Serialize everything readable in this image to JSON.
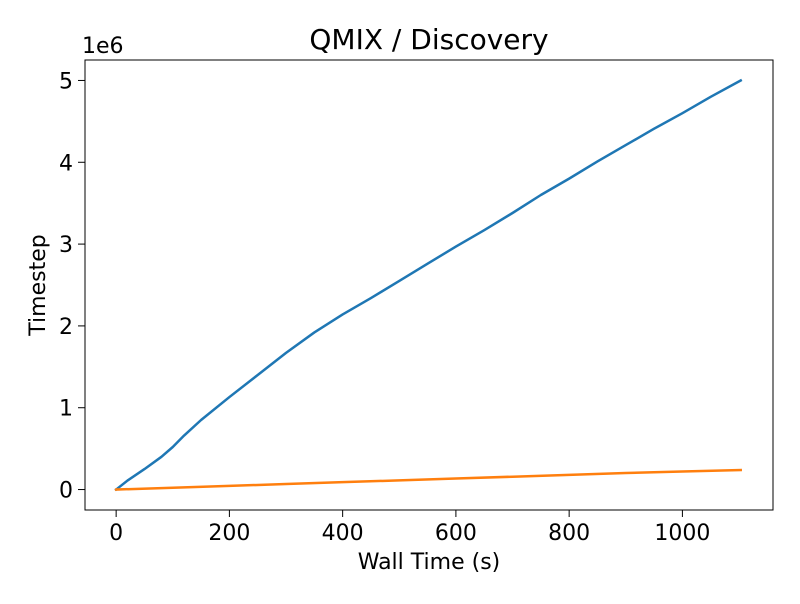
{
  "chart_data": {
    "type": "line",
    "title": "QMIX / Discovery",
    "xlabel": "Wall Time (s)",
    "ylabel": "Timestep",
    "y_offset_label": "1e6",
    "xlim": [
      -55,
      1160
    ],
    "ylim": [
      -250000,
      5250000
    ],
    "x_ticks": [
      0,
      200,
      400,
      600,
      800,
      1000
    ],
    "x_tick_labels": [
      "0",
      "200",
      "400",
      "600",
      "800",
      "1000"
    ],
    "y_ticks": [
      0,
      1000000,
      2000000,
      3000000,
      4000000,
      5000000
    ],
    "y_tick_labels": [
      "0",
      "1",
      "2",
      "3",
      "4",
      "5"
    ],
    "grid": false,
    "series": [
      {
        "color": "#1f77b4",
        "x": [
          0,
          20,
          50,
          80,
          100,
          120,
          150,
          200,
          250,
          300,
          350,
          400,
          450,
          500,
          550,
          600,
          650,
          700,
          750,
          800,
          850,
          900,
          950,
          1000,
          1050,
          1103
        ],
        "y": [
          0,
          110000,
          250000,
          400000,
          520000,
          660000,
          850000,
          1130000,
          1400000,
          1670000,
          1920000,
          2140000,
          2340000,
          2550000,
          2760000,
          2970000,
          3170000,
          3380000,
          3600000,
          3800000,
          4010000,
          4210000,
          4410000,
          4600000,
          4800000,
          5000000
        ]
      },
      {
        "color": "#ff7f0e",
        "x": [
          0,
          100,
          200,
          300,
          400,
          500,
          600,
          700,
          800,
          900,
          1000,
          1103
        ],
        "y": [
          0,
          22000,
          45000,
          67000,
          90000,
          112000,
          135000,
          157000,
          180000,
          202000,
          220000,
          238000
        ]
      }
    ]
  }
}
